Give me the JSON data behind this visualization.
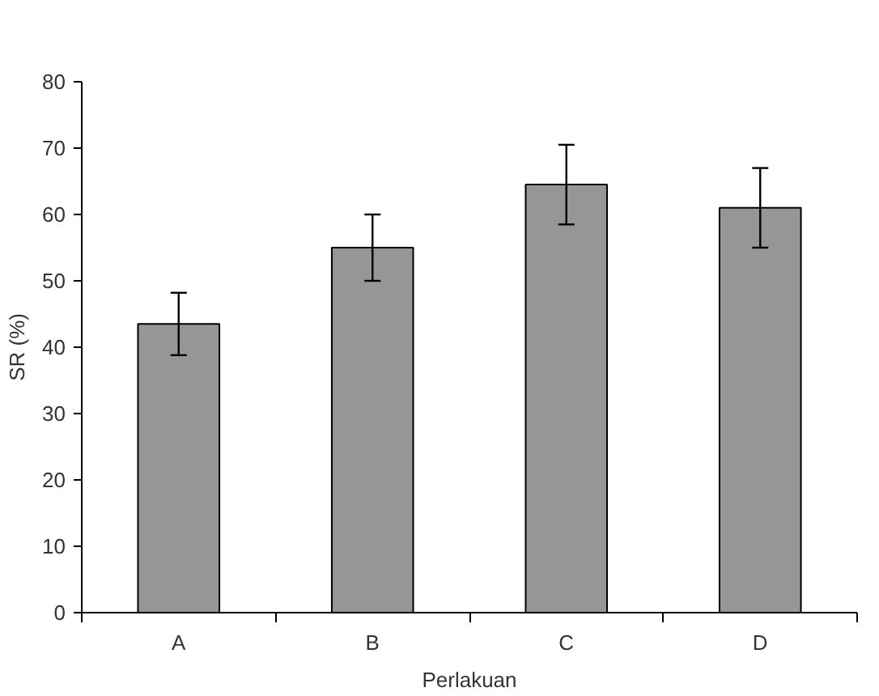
{
  "chart_data": {
    "type": "bar",
    "xlabel": "Perlakuan",
    "ylabel": "SR (%)",
    "categories": [
      "A",
      "B",
      "C",
      "D"
    ],
    "values": [
      43.5,
      55,
      64.5,
      61
    ],
    "errors": [
      4.7,
      5,
      6,
      6
    ],
    "color": "#969696",
    "ylim": [
      0,
      80
    ],
    "yticks": [
      0,
      10,
      20,
      30,
      40,
      50,
      60,
      70,
      80
    ],
    "grid": false
  }
}
